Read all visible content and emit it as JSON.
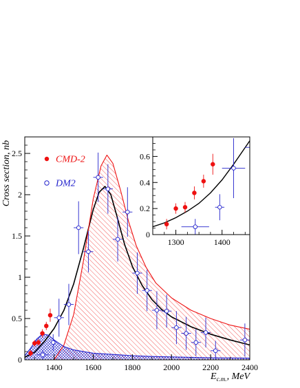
{
  "chart_data": [
    {
      "type": "scatter",
      "xlabel_main": "E",
      "xlabel_sub": "c.m.",
      "xlabel_unit": ", MeV",
      "ylabel": "Cross section, nb",
      "xlim": [
        1250,
        2400
      ],
      "ylim": [
        0,
        2.7
      ],
      "x_ticks": [
        1400,
        1600,
        1800,
        2000,
        2200,
        2400
      ],
      "y_ticks": [
        0,
        0.5,
        1,
        1.5,
        2,
        2.5
      ],
      "y_tick_labels": [
        "0",
        "0.5",
        "1",
        "1.5",
        "2",
        "2.5"
      ],
      "legend_position": "top-left",
      "series": [
        {
          "name": "CMD-2",
          "marker": "filled-circle",
          "color": "#ee1111",
          "points": [
            {
              "x": 1280,
              "y": 0.08,
              "err": 0.04
            },
            {
              "x": 1300,
              "y": 0.2,
              "err": 0.04
            },
            {
              "x": 1320,
              "y": 0.21,
              "err": 0.04
            },
            {
              "x": 1340,
              "y": 0.32,
              "err": 0.05
            },
            {
              "x": 1360,
              "y": 0.41,
              "err": 0.05
            },
            {
              "x": 1380,
              "y": 0.54,
              "err": 0.08
            }
          ]
        },
        {
          "name": "DM2",
          "marker": "open-circle",
          "color": "#2222cc",
          "points": [
            {
              "x": 1342,
              "y": 0.06,
              "err": 0.06,
              "xerr": 30
            },
            {
              "x": 1395,
              "y": 0.21,
              "err": 0.1,
              "xerr": 10
            },
            {
              "x": 1425,
              "y": 0.51,
              "err": 0.23,
              "xerr": 25
            },
            {
              "x": 1475,
              "y": 0.67,
              "err": 0.25,
              "xerr": 25
            },
            {
              "x": 1525,
              "y": 1.6,
              "err": 0.32,
              "xerr": 25
            },
            {
              "x": 1575,
              "y": 1.31,
              "err": 0.25,
              "xerr": 25
            },
            {
              "x": 1625,
              "y": 2.21,
              "err": 0.3,
              "xerr": 25
            },
            {
              "x": 1675,
              "y": 2.07,
              "err": 0.3,
              "xerr": 25
            },
            {
              "x": 1725,
              "y": 1.46,
              "err": 0.27,
              "xerr": 25
            },
            {
              "x": 1775,
              "y": 1.79,
              "err": 0.3,
              "xerr": 25
            },
            {
              "x": 1825,
              "y": 1.05,
              "err": 0.25,
              "xerr": 25
            },
            {
              "x": 1875,
              "y": 0.84,
              "err": 0.25,
              "xerr": 25
            },
            {
              "x": 1925,
              "y": 0.6,
              "err": 0.23,
              "xerr": 25
            },
            {
              "x": 1975,
              "y": 0.59,
              "err": 0.2,
              "xerr": 25
            },
            {
              "x": 2025,
              "y": 0.39,
              "err": 0.2,
              "xerr": 25
            },
            {
              "x": 2075,
              "y": 0.32,
              "err": 0.2,
              "xerr": 25
            },
            {
              "x": 2125,
              "y": 0.21,
              "err": 0.16,
              "xerr": 25
            },
            {
              "x": 2175,
              "y": 0.33,
              "err": 0.18,
              "xerr": 25
            },
            {
              "x": 2225,
              "y": 0.11,
              "err": 0.12,
              "xerr": 25
            },
            {
              "x": 2375,
              "y": 0.24,
              "err": 0.2,
              "xerr": 25
            }
          ]
        }
      ],
      "curves": [
        {
          "style": "black-line",
          "color": "#000000",
          "points": [
            [
              1250,
              0.03
            ],
            [
              1300,
              0.09
            ],
            [
              1350,
              0.22
            ],
            [
              1400,
              0.38
            ],
            [
              1450,
              0.6
            ],
            [
              1500,
              0.92
            ],
            [
              1550,
              1.35
            ],
            [
              1600,
              1.82
            ],
            [
              1630,
              2.03
            ],
            [
              1660,
              2.1
            ],
            [
              1690,
              2.0
            ],
            [
              1720,
              1.75
            ],
            [
              1760,
              1.4
            ],
            [
              1800,
              1.13
            ],
            [
              1850,
              0.9
            ],
            [
              1900,
              0.73
            ],
            [
              1950,
              0.61
            ],
            [
              2000,
              0.52
            ],
            [
              2100,
              0.4
            ],
            [
              2200,
              0.31
            ],
            [
              2300,
              0.24
            ],
            [
              2400,
              0.18
            ]
          ]
        },
        {
          "style": "red-line-hatched",
          "color": "#ee1111",
          "points": [
            [
              1400,
              0
            ],
            [
              1450,
              0.18
            ],
            [
              1500,
              0.55
            ],
            [
              1550,
              1.2
            ],
            [
              1600,
              1.95
            ],
            [
              1640,
              2.35
            ],
            [
              1670,
              2.48
            ],
            [
              1700,
              2.38
            ],
            [
              1740,
              2.05
            ],
            [
              1780,
              1.68
            ],
            [
              1820,
              1.38
            ],
            [
              1870,
              1.12
            ],
            [
              1920,
              0.93
            ],
            [
              2000,
              0.75
            ],
            [
              2100,
              0.6
            ],
            [
              2200,
              0.5
            ],
            [
              2300,
              0.42
            ],
            [
              2400,
              0.37
            ]
          ]
        },
        {
          "style": "blue-line-crosshatched",
          "color": "#2222cc",
          "points": [
            [
              1250,
              0.05
            ],
            [
              1280,
              0.14
            ],
            [
              1310,
              0.25
            ],
            [
              1340,
              0.31
            ],
            [
              1370,
              0.3
            ],
            [
              1400,
              0.24
            ],
            [
              1450,
              0.16
            ],
            [
              1500,
              0.12
            ],
            [
              1600,
              0.08
            ],
            [
              1700,
              0.065
            ],
            [
              1800,
              0.05
            ],
            [
              1900,
              0.04
            ],
            [
              2000,
              0.035
            ],
            [
              2200,
              0.025
            ],
            [
              2400,
              0.02
            ]
          ]
        }
      ]
    },
    {
      "type": "scatter",
      "xlim": [
        1250,
        1460
      ],
      "ylim": [
        0,
        0.75
      ],
      "x_ticks": [
        1300,
        1400
      ],
      "y_ticks": [
        0,
        0.2,
        0.4,
        0.6
      ],
      "y_tick_labels": [
        "0",
        "0.2",
        "0.4",
        "0.6"
      ],
      "curve": [
        [
          1250,
          0.06
        ],
        [
          1275,
          0.09
        ],
        [
          1300,
          0.13
        ],
        [
          1325,
          0.18
        ],
        [
          1350,
          0.24
        ],
        [
          1375,
          0.32
        ],
        [
          1400,
          0.42
        ],
        [
          1425,
          0.54
        ],
        [
          1460,
          0.72
        ]
      ]
    }
  ]
}
